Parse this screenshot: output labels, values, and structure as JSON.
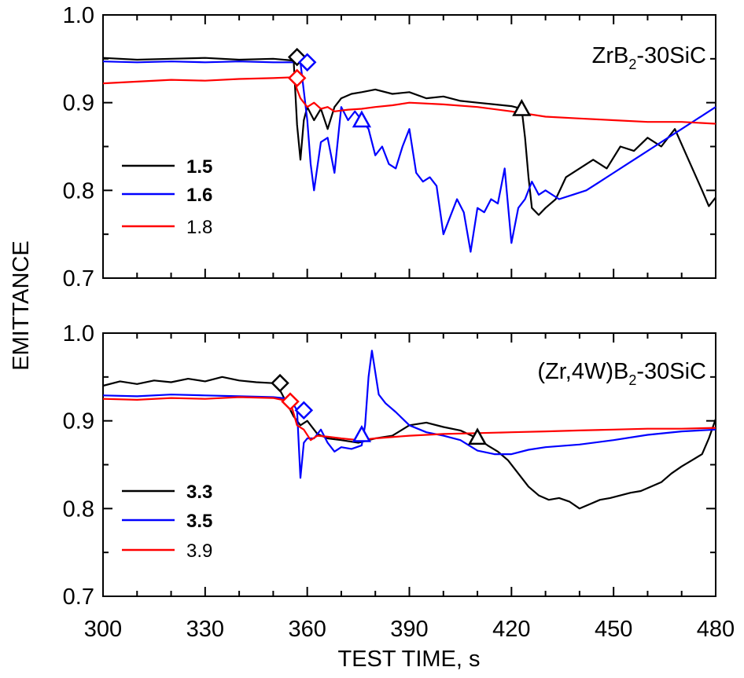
{
  "axes": {
    "xlabel": "TEST TIME, s",
    "ylabel": "EMITTANCE",
    "x_ticks": [
      "300",
      "330",
      "360",
      "390",
      "420",
      "450",
      "480"
    ],
    "y_ticks": [
      "0.7",
      "0.8",
      "0.9",
      "1.0"
    ],
    "xlim": [
      300,
      480
    ],
    "ylim": [
      0.7,
      1.0
    ]
  },
  "chart_data": [
    {
      "type": "line",
      "title": "ZrB2-30SiC",
      "xlabel": "TEST TIME, s",
      "ylabel": "EMITTANCE",
      "xlim": [
        300,
        480
      ],
      "ylim": [
        0.7,
        1.0
      ],
      "legend_position": "left",
      "series": [
        {
          "name": "1.5",
          "bold": true,
          "color": "#000000",
          "x": [
            300,
            310,
            320,
            330,
            340,
            350,
            356,
            357,
            358,
            359,
            360,
            362,
            364,
            366,
            368,
            370,
            373,
            376,
            380,
            385,
            390,
            395,
            400,
            405,
            410,
            415,
            420,
            423,
            424,
            425,
            426,
            428,
            430,
            433,
            436,
            440,
            444,
            448,
            452,
            456,
            460,
            464,
            468,
            472,
            476,
            478,
            480
          ],
          "y": [
            0.951,
            0.949,
            0.95,
            0.951,
            0.949,
            0.95,
            0.948,
            0.875,
            0.835,
            0.88,
            0.895,
            0.88,
            0.893,
            0.87,
            0.895,
            0.905,
            0.91,
            0.912,
            0.915,
            0.91,
            0.912,
            0.905,
            0.907,
            0.902,
            0.9,
            0.898,
            0.896,
            0.893,
            0.86,
            0.815,
            0.78,
            0.772,
            0.78,
            0.79,
            0.815,
            0.825,
            0.835,
            0.825,
            0.85,
            0.845,
            0.86,
            0.85,
            0.87,
            0.835,
            0.8,
            0.782,
            0.792
          ]
        },
        {
          "name": "1.6",
          "bold": true,
          "color": "#0000ff",
          "x": [
            300,
            310,
            320,
            330,
            340,
            350,
            358,
            360,
            361,
            362,
            364,
            366,
            368,
            370,
            372,
            374,
            376,
            378,
            380,
            382,
            384,
            386,
            388,
            390,
            392,
            394,
            396,
            398,
            400,
            402,
            404,
            406,
            408,
            410,
            412,
            414,
            416,
            418,
            420,
            422,
            424,
            426,
            428,
            430,
            434,
            438,
            442,
            446,
            450,
            454,
            458,
            462,
            466,
            470,
            474,
            478,
            480
          ],
          "y": [
            0.947,
            0.946,
            0.947,
            0.946,
            0.947,
            0.946,
            0.946,
            0.88,
            0.83,
            0.8,
            0.855,
            0.86,
            0.82,
            0.895,
            0.88,
            0.89,
            0.88,
            0.87,
            0.84,
            0.85,
            0.83,
            0.825,
            0.85,
            0.87,
            0.82,
            0.81,
            0.815,
            0.805,
            0.75,
            0.77,
            0.79,
            0.775,
            0.73,
            0.78,
            0.775,
            0.79,
            0.785,
            0.825,
            0.74,
            0.78,
            0.79,
            0.81,
            0.795,
            0.8,
            0.79,
            0.795,
            0.8,
            0.81,
            0.82,
            0.83,
            0.84,
            0.85,
            0.86,
            0.87,
            0.88,
            0.89,
            0.895
          ]
        },
        {
          "name": "1.8",
          "bold": false,
          "color": "#ff0000",
          "x": [
            300,
            310,
            320,
            330,
            340,
            350,
            356,
            357,
            358,
            360,
            362,
            364,
            366,
            368,
            372,
            376,
            380,
            385,
            390,
            400,
            410,
            420,
            430,
            440,
            450,
            460,
            470,
            480
          ],
          "y": [
            0.922,
            0.924,
            0.926,
            0.925,
            0.927,
            0.928,
            0.929,
            0.915,
            0.905,
            0.895,
            0.9,
            0.893,
            0.895,
            0.89,
            0.892,
            0.893,
            0.895,
            0.897,
            0.9,
            0.898,
            0.895,
            0.89,
            0.884,
            0.882,
            0.88,
            0.878,
            0.878,
            0.876
          ]
        }
      ],
      "markers": [
        {
          "series": "1.5",
          "shape": "diamond",
          "x": 357,
          "y": 0.952
        },
        {
          "series": "1.6",
          "shape": "diamond",
          "x": 360,
          "y": 0.946
        },
        {
          "series": "1.8",
          "shape": "diamond",
          "x": 357,
          "y": 0.928
        },
        {
          "series": "1.6",
          "shape": "triangle",
          "x": 376,
          "y": 0.88
        },
        {
          "series": "1.5",
          "shape": "triangle",
          "x": 423,
          "y": 0.893
        }
      ]
    },
    {
      "type": "line",
      "title": "(Zr,4W)B2-30SiC",
      "xlabel": "TEST TIME, s",
      "ylabel": "EMITTANCE",
      "xlim": [
        300,
        480
      ],
      "ylim": [
        0.7,
        1.0
      ],
      "legend_position": "bottom-left",
      "series": [
        {
          "name": "3.3",
          "bold": true,
          "color": "#000000",
          "x": [
            300,
            305,
            310,
            315,
            320,
            325,
            330,
            335,
            340,
            345,
            350,
            352,
            354,
            356,
            358,
            360,
            363,
            366,
            370,
            375,
            380,
            385,
            390,
            395,
            400,
            405,
            410,
            413,
            416,
            419,
            422,
            425,
            428,
            431,
            434,
            437,
            440,
            443,
            446,
            449,
            452,
            455,
            458,
            461,
            464,
            467,
            470,
            473,
            476,
            478,
            480
          ],
          "y": [
            0.94,
            0.945,
            0.942,
            0.946,
            0.944,
            0.948,
            0.945,
            0.95,
            0.946,
            0.944,
            0.943,
            0.935,
            0.92,
            0.905,
            0.895,
            0.9,
            0.885,
            0.88,
            0.878,
            0.875,
            0.88,
            0.883,
            0.895,
            0.898,
            0.893,
            0.889,
            0.88,
            0.872,
            0.865,
            0.855,
            0.84,
            0.825,
            0.815,
            0.81,
            0.812,
            0.808,
            0.8,
            0.805,
            0.81,
            0.812,
            0.815,
            0.818,
            0.82,
            0.825,
            0.83,
            0.84,
            0.848,
            0.855,
            0.862,
            0.88,
            0.902
          ]
        },
        {
          "name": "3.5",
          "bold": true,
          "color": "#0000ff",
          "x": [
            300,
            310,
            320,
            330,
            340,
            350,
            355,
            357,
            358,
            359,
            360,
            362,
            364,
            366,
            368,
            370,
            373,
            376,
            377,
            378,
            379,
            381,
            383,
            386,
            390,
            395,
            400,
            405,
            410,
            415,
            420,
            425,
            430,
            440,
            450,
            460,
            470,
            480
          ],
          "y": [
            0.929,
            0.928,
            0.93,
            0.929,
            0.928,
            0.927,
            0.925,
            0.912,
            0.835,
            0.875,
            0.88,
            0.88,
            0.89,
            0.875,
            0.865,
            0.87,
            0.868,
            0.872,
            0.895,
            0.95,
            0.98,
            0.93,
            0.92,
            0.91,
            0.895,
            0.887,
            0.883,
            0.878,
            0.866,
            0.862,
            0.862,
            0.867,
            0.87,
            0.873,
            0.878,
            0.884,
            0.888,
            0.89
          ]
        },
        {
          "name": "3.9",
          "bold": false,
          "color": "#ff0000",
          "x": [
            300,
            310,
            320,
            330,
            340,
            350,
            355,
            357,
            359,
            361,
            363,
            366,
            370,
            375,
            380,
            390,
            400,
            410,
            420,
            430,
            440,
            450,
            460,
            470,
            480
          ],
          "y": [
            0.925,
            0.924,
            0.926,
            0.925,
            0.927,
            0.926,
            0.922,
            0.895,
            0.89,
            0.878,
            0.883,
            0.882,
            0.88,
            0.878,
            0.88,
            0.883,
            0.885,
            0.886,
            0.887,
            0.888,
            0.889,
            0.89,
            0.891,
            0.891,
            0.892
          ]
        }
      ],
      "markers": [
        {
          "series": "3.3",
          "shape": "diamond",
          "x": 352,
          "y": 0.943
        },
        {
          "series": "3.9",
          "shape": "diamond",
          "x": 355,
          "y": 0.922
        },
        {
          "series": "3.5",
          "shape": "diamond",
          "x": 359,
          "y": 0.912
        },
        {
          "series": "3.5",
          "shape": "triangle",
          "x": 376,
          "y": 0.884
        },
        {
          "series": "3.3",
          "shape": "triangle",
          "x": 410,
          "y": 0.881
        }
      ]
    }
  ],
  "panels": [
    {
      "label_main": "ZrB",
      "label_sub": "2",
      "label_rest": "-30SiC",
      "legend": [
        {
          "text": "1.5",
          "bold": true,
          "color": "#000000"
        },
        {
          "text": "1.6",
          "bold": true,
          "color": "#0000ff"
        },
        {
          "text": "1.8",
          "bold": false,
          "color": "#ff0000"
        }
      ]
    },
    {
      "label_main": "(Zr,4W)B",
      "label_sub": "2",
      "label_rest": "-30SiC",
      "legend": [
        {
          "text": "3.3",
          "bold": true,
          "color": "#000000"
        },
        {
          "text": "3.5",
          "bold": true,
          "color": "#0000ff"
        },
        {
          "text": "3.9",
          "bold": false,
          "color": "#ff0000"
        }
      ]
    }
  ]
}
